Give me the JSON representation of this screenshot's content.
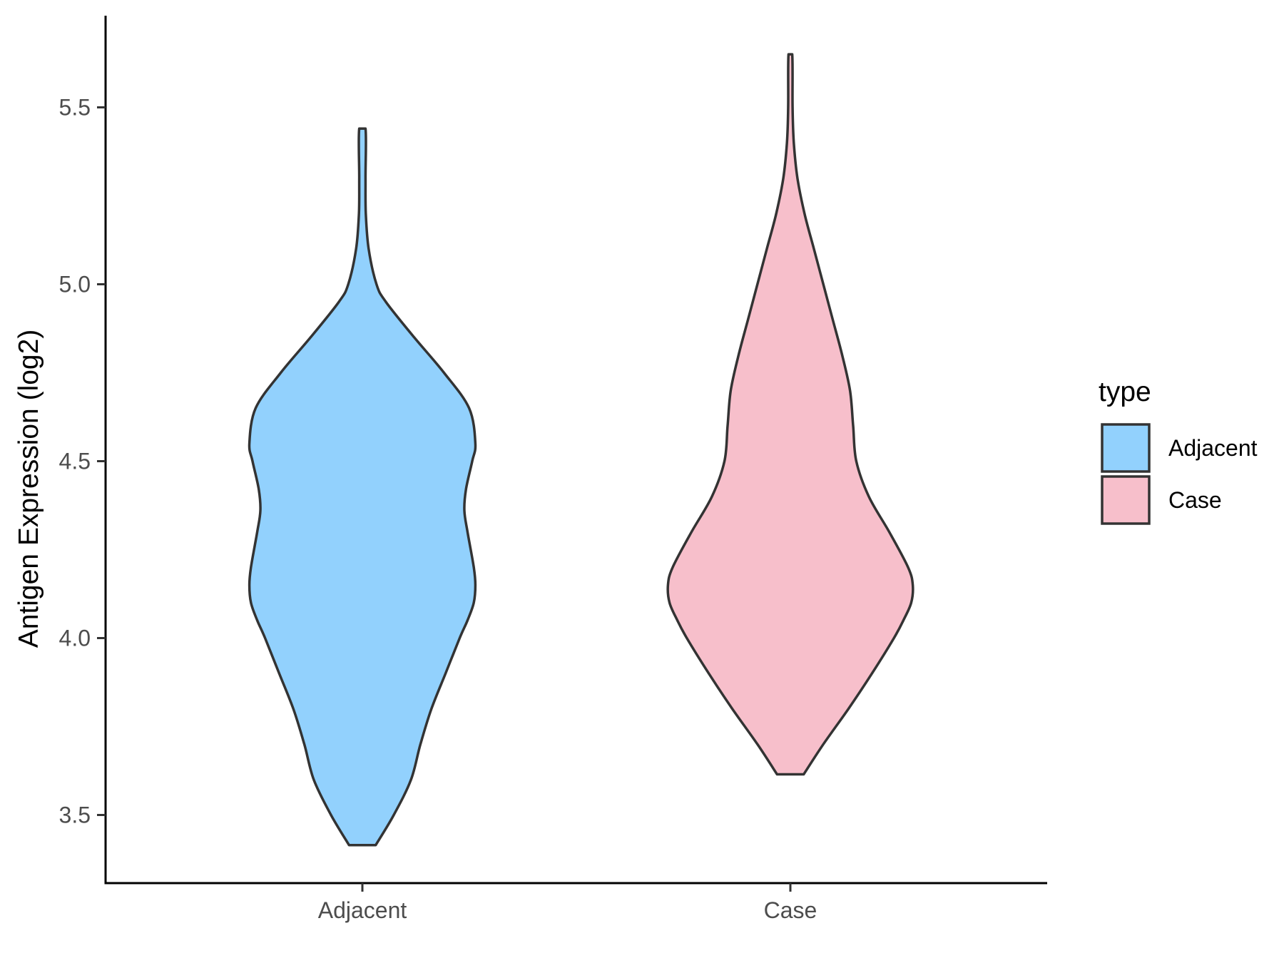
{
  "chart_data": {
    "type": "violin",
    "title": "",
    "xlabel": "",
    "ylabel": "Antigen Expression (log2)",
    "ylim": [
      3.3,
      5.75
    ],
    "yticks": [
      "3.5",
      "4.0",
      "4.5",
      "5.0",
      "5.5"
    ],
    "yticks_values": [
      3.5,
      4.0,
      4.5,
      5.0,
      5.5
    ],
    "categories": [
      "Adjacent",
      "Case"
    ],
    "legend": {
      "title": "type",
      "placement": "right",
      "entries": [
        "Adjacent",
        "Case"
      ]
    },
    "grid": false,
    "series": [
      {
        "name": "Adjacent",
        "color": "#92d1fd",
        "outline": "#333333",
        "min": 3.415,
        "max": 5.445,
        "density_profile": [
          [
            3.415,
            0.085
          ],
          [
            3.5,
            0.2
          ],
          [
            3.6,
            0.31
          ],
          [
            3.7,
            0.37
          ],
          [
            3.8,
            0.44
          ],
          [
            3.9,
            0.53
          ],
          [
            4.0,
            0.62
          ],
          [
            4.05,
            0.67
          ],
          [
            4.1,
            0.71
          ],
          [
            4.15,
            0.72
          ],
          [
            4.2,
            0.71
          ],
          [
            4.3,
            0.67
          ],
          [
            4.36,
            0.65
          ],
          [
            4.42,
            0.66
          ],
          [
            4.5,
            0.7
          ],
          [
            4.55,
            0.72
          ],
          [
            4.65,
            0.68
          ],
          [
            4.75,
            0.52
          ],
          [
            4.85,
            0.33
          ],
          [
            4.95,
            0.15
          ],
          [
            5.0,
            0.09
          ],
          [
            5.1,
            0.04
          ],
          [
            5.2,
            0.022
          ],
          [
            5.3,
            0.02
          ],
          [
            5.44,
            0.02
          ]
        ]
      },
      {
        "name": "Case",
        "color": "#f7bfcb",
        "outline": "#333333",
        "min": 3.615,
        "max": 5.65,
        "density_profile": [
          [
            3.615,
            0.085
          ],
          [
            3.7,
            0.21
          ],
          [
            3.8,
            0.37
          ],
          [
            3.9,
            0.52
          ],
          [
            4.0,
            0.66
          ],
          [
            4.05,
            0.72
          ],
          [
            4.1,
            0.77
          ],
          [
            4.15,
            0.78
          ],
          [
            4.2,
            0.75
          ],
          [
            4.3,
            0.63
          ],
          [
            4.4,
            0.5
          ],
          [
            4.5,
            0.42
          ],
          [
            4.6,
            0.4
          ],
          [
            4.7,
            0.38
          ],
          [
            4.8,
            0.33
          ],
          [
            4.9,
            0.27
          ],
          [
            5.0,
            0.21
          ],
          [
            5.1,
            0.15
          ],
          [
            5.2,
            0.09
          ],
          [
            5.3,
            0.045
          ],
          [
            5.4,
            0.022
          ],
          [
            5.5,
            0.014
          ],
          [
            5.65,
            0.012
          ]
        ]
      }
    ]
  }
}
